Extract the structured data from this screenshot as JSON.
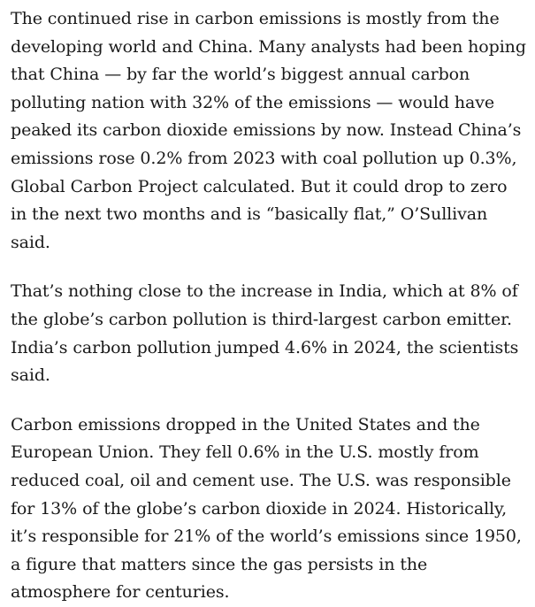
{
  "article": {
    "paragraphs": [
      "The continued rise in carbon emissions is mostly from the developing world and China. Many analysts had been hoping that China — by far the world’s biggest annual carbon polluting nation with 32% of the emissions — would have peaked its carbon dioxide emissions by now. Instead China’s emissions rose 0.2% from 2023 with coal pollution up 0.3%, Global Carbon Project calculated. But it could drop to zero in the next two months and is “basically flat,” O’Sullivan said.",
      "That’s nothing close to the increase in India, which at 8% of the globe’s carbon pollution is third-largest carbon emitter. India’s carbon pollution jumped 4.6% in 2024, the scientists said.",
      "Carbon emissions dropped in the United States and the European Union. They fell 0.6% in the U.S. mostly from reduced coal, oil and cement use. The U.S. was responsible for 13% of the globe’s carbon dioxide in 2024. Historically, it’s responsible for 21% of the world’s emissions since 1950, a figure that matters since the gas persists in the atmosphere for centuries."
    ]
  }
}
